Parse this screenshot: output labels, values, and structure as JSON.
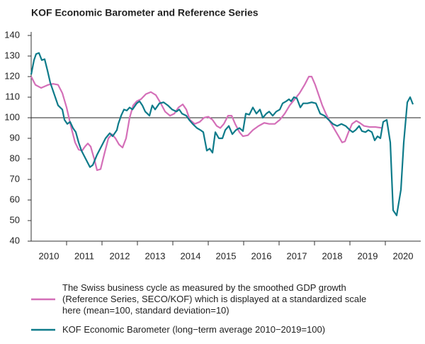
{
  "chart_data": {
    "type": "line",
    "title": "KOF Economic Barometer and Reference Series",
    "xlim": [
      2010,
      2021
    ],
    "xticks": [
      {
        "value": 2010.5,
        "label": "2010"
      },
      {
        "value": 2011.5,
        "label": "2011"
      },
      {
        "value": 2012.5,
        "label": "2012"
      },
      {
        "value": 2013.5,
        "label": "2013"
      },
      {
        "value": 2014.5,
        "label": "2014"
      },
      {
        "value": 2015.5,
        "label": "2015"
      },
      {
        "value": 2016.5,
        "label": "2016"
      },
      {
        "value": 2017.5,
        "label": "2017"
      },
      {
        "value": 2018.5,
        "label": "2018"
      },
      {
        "value": 2019.5,
        "label": "2019"
      },
      {
        "value": 2020.5,
        "label": "2020"
      }
    ],
    "xminorticks": [
      2011,
      2012,
      2013,
      2014,
      2015,
      2016,
      2017,
      2018,
      2019,
      2020
    ],
    "ylim": [
      40,
      140
    ],
    "yticks": [
      40,
      50,
      60,
      70,
      80,
      90,
      100,
      110,
      120,
      130,
      140
    ],
    "reference_line": 100,
    "grid": false,
    "series": [
      {
        "name": "The Swiss business cycle as measured by the smoothed GDP growth (Reference Series, SECO/KOF) which is displayed at a standardized scale here (mean=100, standard deviation=10)",
        "color": "#d46fb8",
        "x": [
          2010.0,
          2010.12,
          2010.28,
          2010.48,
          2010.62,
          2010.76,
          2010.88,
          2011.0,
          2011.12,
          2011.24,
          2011.34,
          2011.44,
          2011.52,
          2011.6,
          2011.68,
          2011.78,
          2011.86,
          2011.96,
          2012.06,
          2012.18,
          2012.28,
          2012.38,
          2012.48,
          2012.58,
          2012.68,
          2012.78,
          2012.88,
          2012.98,
          2013.1,
          2013.24,
          2013.38,
          2013.52,
          2013.66,
          2013.78,
          2013.92,
          2014.04,
          2014.16,
          2014.28,
          2014.38,
          2014.48,
          2014.62,
          2014.76,
          2014.88,
          2015.0,
          2015.12,
          2015.24,
          2015.34,
          2015.44,
          2015.56,
          2015.66,
          2015.76,
          2015.88,
          2015.98,
          2016.12,
          2016.26,
          2016.42,
          2016.58,
          2016.72,
          2016.88,
          2017.02,
          2017.16,
          2017.3,
          2017.44,
          2017.58,
          2017.72,
          2017.84,
          2017.92,
          2018.02,
          2018.12,
          2018.22,
          2018.32,
          2018.44,
          2018.56,
          2018.68,
          2018.78,
          2018.86,
          2018.96,
          2019.06,
          2019.18,
          2019.28,
          2019.4,
          2019.56,
          2019.72,
          2019.92
        ],
        "values": [
          120,
          116,
          114.5,
          116,
          116.5,
          116,
          112,
          105,
          96,
          88,
          84.5,
          84,
          86,
          87.5,
          86,
          80,
          74.5,
          75,
          82,
          90,
          92,
          90,
          87,
          85.5,
          90,
          100,
          106,
          108,
          109,
          111.5,
          112.5,
          111,
          107,
          103,
          101,
          102,
          105,
          106.5,
          104,
          99,
          97,
          98,
          100,
          100.5,
          99,
          96,
          95,
          97,
          101,
          101,
          97,
          93,
          91,
          91.5,
          94,
          96,
          97.5,
          97,
          97,
          99,
          102,
          106,
          109,
          112,
          116,
          120,
          120,
          116,
          111,
          106,
          102,
          98,
          94.5,
          91,
          88,
          88.5,
          93,
          97,
          98.5,
          97.5,
          96,
          95.5,
          95.5,
          95
        ]
      },
      {
        "name": "KOF Economic Barometer (long−term average 2010−2019=100)",
        "color": "#0e7b8a",
        "x": [
          2010.0,
          2010.08,
          2010.14,
          2010.22,
          2010.3,
          2010.38,
          2010.46,
          2010.54,
          2010.66,
          2010.76,
          2010.88,
          2010.94,
          2011.02,
          2011.1,
          2011.18,
          2011.26,
          2011.34,
          2011.42,
          2011.54,
          2011.66,
          2011.74,
          2011.86,
          2011.98,
          2012.1,
          2012.22,
          2012.3,
          2012.42,
          2012.46,
          2012.54,
          2012.62,
          2012.7,
          2012.78,
          2012.86,
          2012.98,
          2013.06,
          2013.14,
          2013.22,
          2013.34,
          2013.42,
          2013.5,
          2013.62,
          2013.74,
          2013.86,
          2013.98,
          2014.1,
          2014.18,
          2014.26,
          2014.38,
          2014.46,
          2014.56,
          2014.68,
          2014.78,
          2014.86,
          2014.96,
          2015.04,
          2015.12,
          2015.2,
          2015.3,
          2015.4,
          2015.48,
          2015.58,
          2015.68,
          2015.78,
          2015.88,
          2015.98,
          2016.06,
          2016.16,
          2016.26,
          2016.36,
          2016.46,
          2016.54,
          2016.64,
          2016.72,
          2016.82,
          2016.92,
          2017.02,
          2017.1,
          2017.2,
          2017.28,
          2017.34,
          2017.42,
          2017.5,
          2017.6,
          2017.68,
          2017.8,
          2017.92,
          2018.04,
          2018.16,
          2018.28,
          2018.4,
          2018.52,
          2018.64,
          2018.76,
          2018.88,
          2019.0,
          2019.08,
          2019.16,
          2019.26,
          2019.34,
          2019.44,
          2019.52,
          2019.62,
          2019.7,
          2019.78,
          2019.86,
          2019.94,
          2020.04,
          2020.14,
          2020.22,
          2020.32,
          2020.44,
          2020.52,
          2020.62,
          2020.7,
          2020.78
        ],
        "values": [
          121,
          128,
          131,
          131.5,
          128,
          128.5,
          123,
          117,
          111,
          106,
          104,
          99,
          97,
          98,
          95,
          93,
          88,
          84,
          80,
          76,
          77,
          82,
          86,
          90,
          92.5,
          91,
          94,
          97,
          101,
          104,
          103.5,
          105,
          104,
          107,
          108,
          106,
          103,
          101,
          106,
          104,
          107,
          107.5,
          106,
          104,
          103,
          104,
          102,
          101,
          99,
          97,
          95,
          94,
          93,
          84,
          85,
          83,
          93,
          90,
          90,
          94,
          96,
          92,
          94,
          95,
          93.5,
          102,
          101.5,
          105,
          102,
          104,
          100,
          102,
          103,
          101,
          103,
          104,
          107,
          108,
          109,
          108,
          110,
          109.5,
          105,
          107,
          107,
          107.5,
          107,
          102,
          101,
          99,
          97,
          96,
          97,
          96,
          94,
          93,
          94,
          96,
          93.5,
          93,
          94,
          93,
          89,
          91,
          90,
          98,
          99,
          88,
          55,
          52.5,
          65,
          88,
          107.5,
          110,
          106.5
        ]
      }
    ]
  }
}
